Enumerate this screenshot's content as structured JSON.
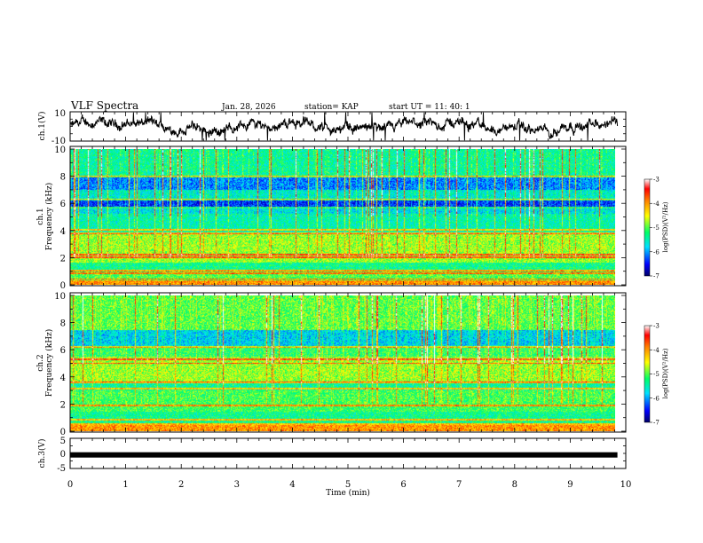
{
  "header": {
    "title": "VLF Spectra",
    "date": "Jan. 28, 2026",
    "station": "station= KAP",
    "start_time": "start  UT =   11: 40: 1"
  },
  "chart_data": [
    {
      "id": "ch1-waveform",
      "type": "line",
      "ylabel": "ch.1(V)",
      "ylim": [
        -10,
        10
      ],
      "yticks": [
        -10,
        10
      ],
      "xlim": [
        0,
        10
      ],
      "data_extent": [
        0,
        9.85
      ],
      "description_values": "noisy waveform fluctuating mostly between -7 and 7 V"
    },
    {
      "id": "ch1-spectrogram",
      "type": "heatmap",
      "ylabel": "ch.1",
      "ylabel2": "Frequency (kHz)",
      "ylim": [
        0,
        10
      ],
      "yticks": [
        0,
        2,
        4,
        6,
        8,
        10
      ],
      "xlim": [
        0,
        10
      ],
      "colorbar": {
        "label": "log(PSD)(V²/Hz)",
        "range": [
          -7,
          -3
        ],
        "ticks": [
          "-3",
          "-4",
          "-5",
          "-6",
          "-7"
        ]
      }
    },
    {
      "id": "ch2-spectrogram",
      "type": "heatmap",
      "ylabel": "ch.2",
      "ylabel2": "Frequency (kHz)",
      "ylim": [
        0,
        10
      ],
      "yticks": [
        0,
        2,
        4,
        6,
        8,
        10
      ],
      "xlim": [
        0,
        10
      ],
      "colorbar": {
        "label": "log(PSD)(V²/Hz)",
        "range": [
          -7,
          -3
        ],
        "ticks": [
          "-3",
          "-4",
          "-5",
          "-6",
          "-7"
        ]
      }
    },
    {
      "id": "ch3-waveform",
      "type": "line",
      "ylabel": "ch.3(V)",
      "ylim": [
        -5,
        5
      ],
      "yticks": [
        -5,
        0,
        5
      ],
      "xlim": [
        0,
        10
      ],
      "constant_value": -0.5,
      "data_extent": [
        0,
        9.85
      ]
    }
  ],
  "time_axis": {
    "label": "Time (min)",
    "ticks": [
      "0",
      "1",
      "2",
      "3",
      "4",
      "5",
      "6",
      "7",
      "8",
      "9",
      "10"
    ]
  },
  "colors": {
    "line": "#000000",
    "frame": "#000000"
  }
}
